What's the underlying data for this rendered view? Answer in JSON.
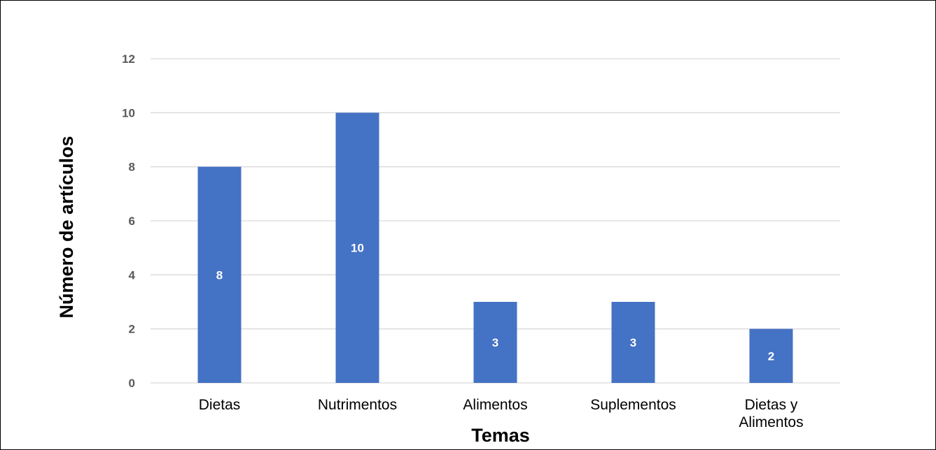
{
  "chart_data": {
    "type": "bar",
    "categories": [
      "Dietas",
      "Nutrimentos",
      "Alimentos",
      "Suplementos",
      "Dietas y Alimentos"
    ],
    "category_lines": [
      [
        "Dietas"
      ],
      [
        "Nutrimentos"
      ],
      [
        "Alimentos"
      ],
      [
        "Suplementos"
      ],
      [
        "Dietas y",
        "Alimentos"
      ]
    ],
    "values": [
      8,
      10,
      3,
      3,
      2
    ],
    "data_labels": [
      "8",
      "10",
      "3",
      "3",
      "2"
    ],
    "xlabel": "Temas",
    "ylabel": "Número de artículos",
    "ylim": [
      0,
      12
    ],
    "yticks": [
      0,
      2,
      4,
      6,
      8,
      10,
      12
    ],
    "grid": true,
    "legend": "none",
    "colors": {
      "bar": "#4472C4",
      "grid": "#D9D9D9",
      "tick_text": "#595959",
      "data_label": "#FFFFFF"
    }
  }
}
